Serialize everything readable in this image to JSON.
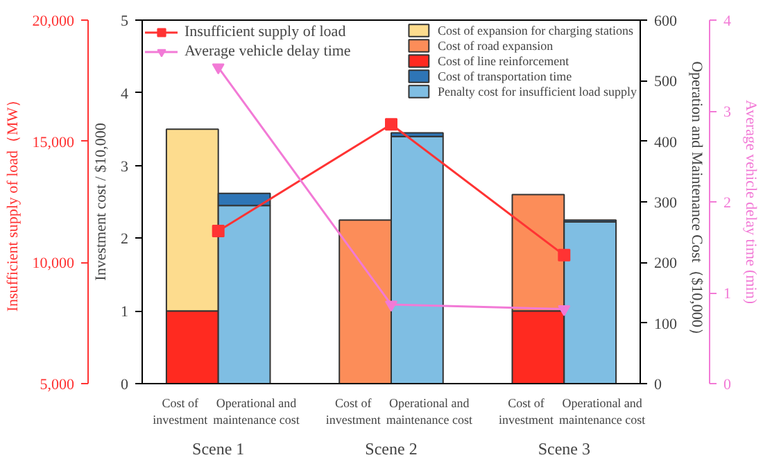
{
  "chart_data": [
    {
      "type": "bar",
      "stacked": true,
      "categories": [
        "Cost of investment",
        "Operational and maintenance cost",
        "Cost of investment",
        "Operational and maintenance cost",
        "Cost of investment",
        "Operational and maintenance cost"
      ],
      "ylabel": "Investment cost / $10,000",
      "y2label": "Operation and Maintenance Cost（$10,000）",
      "ylim": [
        0,
        5
      ],
      "yticks": [
        0,
        1,
        2,
        3,
        4,
        5
      ],
      "y2lim": [
        0,
        600
      ],
      "y2ticks": [
        0,
        100,
        200,
        300,
        400,
        500,
        600
      ],
      "legend": "top right",
      "series": [
        {
          "name": "Cost of line reinforcement",
          "color": "#ff2a20",
          "values": [
            1.0,
            null,
            null,
            null,
            1.0,
            null
          ]
        },
        {
          "name": "Cost of road expansion",
          "color": "#fc8d59",
          "values": [
            null,
            null,
            2.25,
            null,
            1.6,
            null
          ]
        },
        {
          "name": "Cost of expansion for charging stations",
          "color": "#fddc8e",
          "values": [
            2.5,
            null,
            null,
            null,
            null,
            null
          ]
        },
        {
          "name": "Penalty cost for insufficient load supply",
          "color": "#7fbee3",
          "axis": "y2",
          "values": [
            null,
            294,
            null,
            408,
            null,
            267
          ]
        },
        {
          "name": "Cost of transportation time",
          "color": "#2e75b6",
          "axis": "y2",
          "values": [
            null,
            20,
            null,
            6,
            null,
            3
          ]
        }
      ]
    },
    {
      "type": "line",
      "categories": [
        "Scene 1",
        "Scene 2",
        "Scene 3"
      ],
      "ylabel": "Insufficient supply of load（MW）",
      "y2label": "Average vehicle delay time (min)",
      "ylim": [
        5000,
        20000
      ],
      "yticks": [
        {
          "value": 5000,
          "label": "5,000"
        },
        {
          "value": 10000,
          "label": "10,000"
        },
        {
          "value": 15000,
          "label": "15,000"
        },
        {
          "value": 20000,
          "label": "20,000"
        }
      ],
      "y2lim": [
        0,
        4
      ],
      "y2ticks": [
        0,
        1,
        2,
        3,
        4
      ],
      "legend": "top left",
      "series": [
        {
          "name": "Insufficient supply of load",
          "marker": "square",
          "color": "#ff3333",
          "values": [
            11300,
            15700,
            10300
          ]
        },
        {
          "name": "Average vehicle delay time",
          "marker": "triangle",
          "color": "#f27ad6",
          "axis": "y2",
          "values": [
            3.48,
            0.87,
            0.82
          ]
        }
      ]
    }
  ]
}
